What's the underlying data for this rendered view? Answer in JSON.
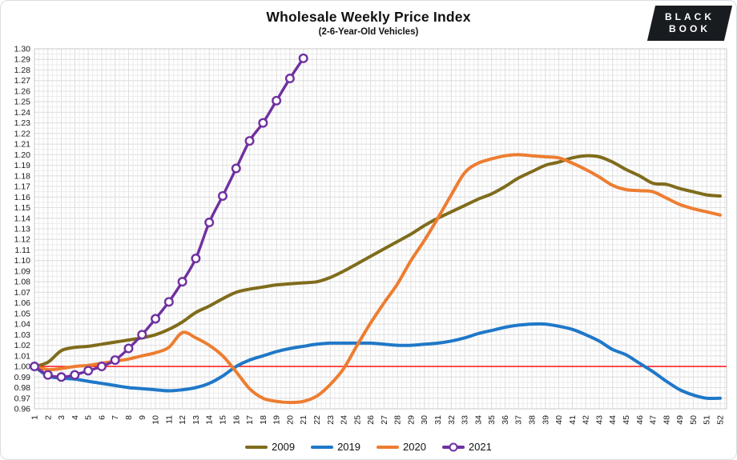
{
  "header": {
    "title": "Wholesale Weekly Price Index",
    "subtitle": "(2-6-Year-Old Vehicles)",
    "logo": {
      "line1": "BLACK",
      "line2": "BOOK",
      "bg": "#181b1f",
      "fg": "#ffffff"
    }
  },
  "chart_data": {
    "type": "line",
    "title": "Wholesale Weekly Price Index",
    "subtitle": "(2-6-Year-Old Vehicles)",
    "x": [
      1,
      2,
      3,
      4,
      5,
      6,
      7,
      8,
      9,
      10,
      11,
      12,
      13,
      14,
      15,
      16,
      17,
      18,
      19,
      20,
      21,
      22,
      23,
      24,
      25,
      26,
      27,
      28,
      29,
      30,
      31,
      32,
      33,
      34,
      35,
      36,
      37,
      38,
      39,
      40,
      41,
      42,
      43,
      44,
      45,
      46,
      47,
      48,
      49,
      50,
      51,
      52
    ],
    "ylim": [
      0.96,
      1.3
    ],
    "ytick_step": 0.01,
    "grid": true,
    "legend_position": "bottom",
    "reference_line": {
      "value": 1.0,
      "color": "#ff0000"
    },
    "series": [
      {
        "name": "2009",
        "color": "#7F6C1C",
        "marker": "none",
        "values": [
          1.0,
          1.004,
          1.015,
          1.018,
          1.019,
          1.021,
          1.023,
          1.025,
          1.027,
          1.03,
          1.035,
          1.042,
          1.051,
          1.057,
          1.064,
          1.07,
          1.073,
          1.075,
          1.077,
          1.078,
          1.079,
          1.08,
          1.084,
          1.09,
          1.097,
          1.104,
          1.111,
          1.118,
          1.125,
          1.133,
          1.14,
          1.146,
          1.152,
          1.158,
          1.163,
          1.17,
          1.178,
          1.184,
          1.19,
          1.193,
          1.197,
          1.199,
          1.198,
          1.193,
          1.186,
          1.18,
          1.173,
          1.172,
          1.168,
          1.165,
          1.162,
          1.161
        ]
      },
      {
        "name": "2019",
        "color": "#1F78C8",
        "marker": "none",
        "values": [
          1.0,
          0.991,
          0.989,
          0.988,
          0.986,
          0.984,
          0.982,
          0.98,
          0.979,
          0.978,
          0.977,
          0.978,
          0.98,
          0.984,
          0.991,
          1.0,
          1.006,
          1.01,
          1.014,
          1.017,
          1.019,
          1.021,
          1.022,
          1.022,
          1.022,
          1.022,
          1.021,
          1.02,
          1.02,
          1.021,
          1.022,
          1.024,
          1.027,
          1.031,
          1.034,
          1.037,
          1.039,
          1.04,
          1.04,
          1.038,
          1.035,
          1.03,
          1.024,
          1.016,
          1.011,
          1.003,
          0.995,
          0.986,
          0.978,
          0.973,
          0.97,
          0.97
        ]
      },
      {
        "name": "2020",
        "color": "#ED7D31",
        "marker": "none",
        "values": [
          1.0,
          0.997,
          0.998,
          1.0,
          1.001,
          1.003,
          1.005,
          1.007,
          1.01,
          1.013,
          1.018,
          1.032,
          1.027,
          1.02,
          1.01,
          0.995,
          0.979,
          0.97,
          0.967,
          0.966,
          0.967,
          0.972,
          0.983,
          0.998,
          1.02,
          1.041,
          1.06,
          1.078,
          1.1,
          1.119,
          1.14,
          1.162,
          1.183,
          1.192,
          1.196,
          1.199,
          1.2,
          1.199,
          1.198,
          1.197,
          1.192,
          1.186,
          1.179,
          1.171,
          1.167,
          1.166,
          1.165,
          1.159,
          1.153,
          1.149,
          1.146,
          1.143
        ]
      },
      {
        "name": "2021",
        "color": "#7030A0",
        "marker": "open-circle",
        "values": [
          1.0,
          0.992,
          0.99,
          0.992,
          0.996,
          1.0,
          1.006,
          1.017,
          1.03,
          1.045,
          1.061,
          1.08,
          1.102,
          1.136,
          1.161,
          1.187,
          1.213,
          1.23,
          1.251,
          1.272,
          1.291
        ]
      }
    ]
  }
}
